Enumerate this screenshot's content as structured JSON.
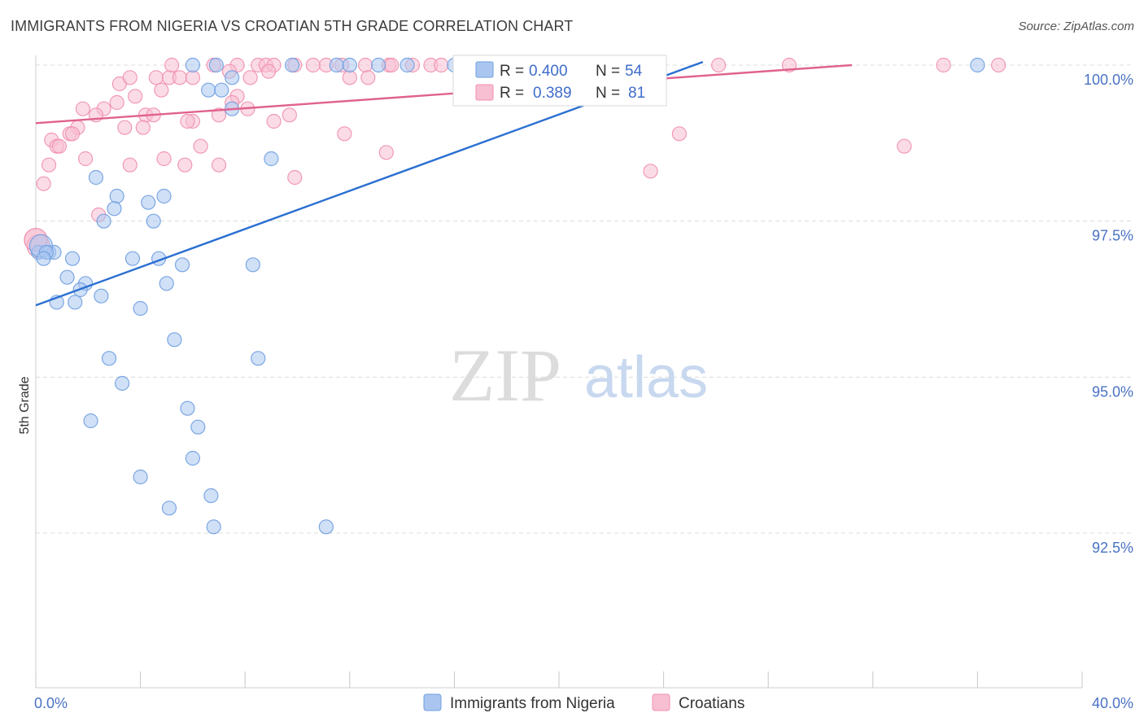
{
  "header": {
    "title": "IMMIGRANTS FROM NIGERIA VS CROATIAN 5TH GRADE CORRELATION CHART",
    "source": "Source: ZipAtlas.com"
  },
  "watermark": {
    "zip": "ZIP",
    "atlas": "atlas"
  },
  "colors": {
    "blue": "#6f9fe0",
    "blue_fill": "#aac6f0",
    "blue_line": "#2a6fd1",
    "pink": "#f08fae",
    "pink_fill": "#f7bfd1",
    "pink_line": "#e0628d",
    "grid": "#dcdcdc",
    "axis_text": "#4a72c4"
  },
  "legend_box": {
    "rows": [
      {
        "r_label": "R =",
        "r_value": "0.400",
        "n_label": "N =",
        "n_value": "54",
        "series": "blue"
      },
      {
        "r_label": "R =",
        "r_value": "0.389",
        "n_label": "N =",
        "n_value": "81",
        "series": "pink"
      }
    ]
  },
  "bottom_legend": {
    "items": [
      {
        "label": "Immigrants from Nigeria",
        "series": "blue"
      },
      {
        "label": "Croatians",
        "series": "pink"
      }
    ]
  },
  "chart_data": {
    "type": "scatter",
    "title": "IMMIGRANTS FROM NIGERIA VS CROATIAN 5TH GRADE CORRELATION CHART",
    "xlabel": "",
    "ylabel": "5th Grade",
    "xlim": [
      0,
      40
    ],
    "ylim": [
      90.0,
      100.4
    ],
    "x_tick_labels": [
      {
        "value": 0,
        "label": "0.0%"
      },
      {
        "value": 40,
        "label": "40.0%"
      }
    ],
    "y_ticks": [
      {
        "value": 92.5,
        "label": "92.5%"
      },
      {
        "value": 95.0,
        "label": "95.0%"
      },
      {
        "value": 97.5,
        "label": "97.5%"
      },
      {
        "value": 100.0,
        "label": "100.0%"
      }
    ],
    "series": [
      {
        "name": "Immigrants from Nigeria",
        "color": "blue",
        "r": 0.4,
        "n": 54,
        "trend": {
          "x": [
            0.0,
            25.5
          ],
          "y": [
            96.15,
            100.05
          ]
        },
        "points": [
          [
            6.0,
            100.0
          ],
          [
            6.9,
            100.0
          ],
          [
            9.8,
            100.0
          ],
          [
            11.5,
            100.0
          ],
          [
            12.0,
            100.0
          ],
          [
            13.1,
            100.0
          ],
          [
            14.2,
            100.0
          ],
          [
            16.0,
            100.0
          ],
          [
            19.1,
            100.0
          ],
          [
            36.0,
            100.0
          ],
          [
            7.5,
            99.8
          ],
          [
            6.6,
            99.6
          ],
          [
            7.1,
            99.6
          ],
          [
            7.5,
            99.3
          ],
          [
            9.0,
            98.5
          ],
          [
            2.3,
            98.2
          ],
          [
            3.1,
            97.9
          ],
          [
            4.9,
            97.9
          ],
          [
            4.3,
            97.8
          ],
          [
            3.0,
            97.7
          ],
          [
            2.6,
            97.5
          ],
          [
            4.5,
            97.5
          ],
          [
            0.1,
            97.0
          ],
          [
            0.5,
            97.0
          ],
          [
            0.7,
            97.0
          ],
          [
            1.4,
            96.9
          ],
          [
            3.7,
            96.9
          ],
          [
            4.7,
            96.9
          ],
          [
            5.6,
            96.8
          ],
          [
            8.3,
            96.8
          ],
          [
            1.2,
            96.6
          ],
          [
            1.9,
            96.5
          ],
          [
            1.7,
            96.4
          ],
          [
            5.0,
            96.5
          ],
          [
            0.8,
            96.2
          ],
          [
            1.5,
            96.2
          ],
          [
            2.5,
            96.3
          ],
          [
            4.0,
            96.1
          ],
          [
            5.3,
            95.6
          ],
          [
            2.8,
            95.3
          ],
          [
            8.5,
            95.3
          ],
          [
            3.3,
            94.9
          ],
          [
            5.8,
            94.5
          ],
          [
            2.1,
            94.3
          ],
          [
            6.2,
            94.2
          ],
          [
            6.0,
            93.7
          ],
          [
            4.0,
            93.4
          ],
          [
            6.7,
            93.1
          ],
          [
            5.1,
            92.9
          ],
          [
            6.8,
            92.6
          ],
          [
            11.1,
            92.6
          ],
          [
            0.2,
            97.1
          ],
          [
            0.4,
            97.0
          ],
          [
            0.3,
            96.9
          ]
        ]
      },
      {
        "name": "Croatians",
        "color": "pink",
        "r": 0.389,
        "n": 81,
        "trend": {
          "x": [
            0.0,
            31.2
          ],
          "y": [
            99.07,
            100.0
          ]
        },
        "points": [
          [
            6.8,
            100.0
          ],
          [
            7.7,
            100.0
          ],
          [
            8.5,
            100.0
          ],
          [
            8.8,
            100.0
          ],
          [
            9.1,
            100.0
          ],
          [
            9.9,
            100.0
          ],
          [
            11.1,
            100.0
          ],
          [
            11.7,
            100.0
          ],
          [
            12.6,
            100.0
          ],
          [
            13.5,
            100.0
          ],
          [
            14.4,
            100.0
          ],
          [
            15.1,
            100.0
          ],
          [
            15.5,
            100.0
          ],
          [
            16.5,
            100.0
          ],
          [
            17.1,
            100.0
          ],
          [
            18.1,
            100.0
          ],
          [
            19.2,
            100.0
          ],
          [
            21.3,
            100.0
          ],
          [
            22.5,
            100.0
          ],
          [
            26.1,
            100.0
          ],
          [
            28.8,
            100.0
          ],
          [
            34.7,
            100.0
          ],
          [
            36.8,
            100.0
          ],
          [
            4.6,
            99.8
          ],
          [
            5.1,
            99.8
          ],
          [
            5.5,
            99.8
          ],
          [
            6.0,
            99.8
          ],
          [
            8.2,
            99.8
          ],
          [
            12.7,
            99.8
          ],
          [
            3.2,
            99.7
          ],
          [
            4.8,
            99.6
          ],
          [
            7.7,
            99.5
          ],
          [
            3.8,
            99.5
          ],
          [
            3.1,
            99.4
          ],
          [
            7.5,
            99.4
          ],
          [
            2.6,
            99.3
          ],
          [
            1.8,
            99.3
          ],
          [
            7.0,
            99.2
          ],
          [
            8.1,
            99.3
          ],
          [
            9.7,
            99.2
          ],
          [
            4.2,
            99.2
          ],
          [
            2.3,
            99.2
          ],
          [
            4.5,
            99.2
          ],
          [
            6.0,
            99.1
          ],
          [
            5.8,
            99.1
          ],
          [
            9.1,
            99.1
          ],
          [
            1.6,
            99.0
          ],
          [
            3.4,
            99.0
          ],
          [
            4.1,
            99.0
          ],
          [
            1.3,
            98.9
          ],
          [
            1.4,
            98.9
          ],
          [
            11.8,
            98.9
          ],
          [
            24.6,
            98.9
          ],
          [
            0.6,
            98.8
          ],
          [
            0.8,
            98.7
          ],
          [
            0.9,
            98.7
          ],
          [
            6.3,
            98.7
          ],
          [
            33.2,
            98.7
          ],
          [
            13.4,
            98.6
          ],
          [
            1.9,
            98.5
          ],
          [
            4.9,
            98.5
          ],
          [
            3.6,
            98.4
          ],
          [
            5.7,
            98.4
          ],
          [
            7.0,
            98.4
          ],
          [
            23.5,
            98.3
          ],
          [
            0.5,
            98.4
          ],
          [
            9.9,
            98.2
          ],
          [
            0.3,
            98.1
          ],
          [
            2.4,
            97.6
          ],
          [
            0.0,
            97.2
          ],
          [
            0.1,
            97.1
          ],
          [
            0.0,
            97.2
          ],
          [
            3.6,
            99.8
          ],
          [
            5.2,
            100.0
          ],
          [
            7.4,
            99.9
          ],
          [
            8.9,
            99.9
          ],
          [
            10.6,
            100.0
          ],
          [
            12.0,
            99.8
          ],
          [
            13.6,
            100.0
          ],
          [
            16.4,
            100.0
          ],
          [
            19.8,
            100.0
          ]
        ]
      }
    ]
  }
}
